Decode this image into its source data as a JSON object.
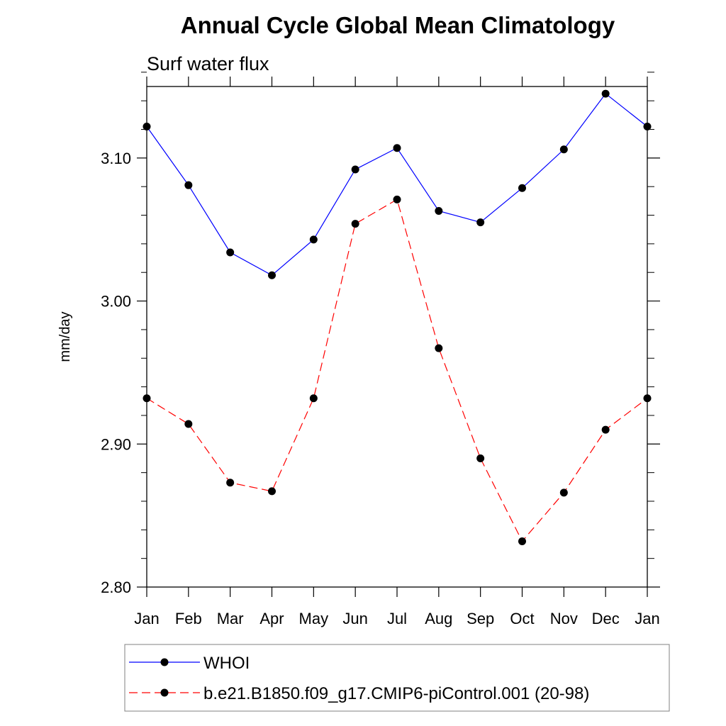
{
  "chart_data": {
    "type": "line",
    "title": "Annual Cycle Global Mean Climatology",
    "subtitle": "Surf water flux",
    "xlabel": "",
    "ylabel": "mm/day",
    "categories": [
      "Jan",
      "Feb",
      "Mar",
      "Apr",
      "May",
      "Jun",
      "Jul",
      "Aug",
      "Sep",
      "Oct",
      "Nov",
      "Dec",
      "Jan"
    ],
    "ylim": [
      2.8,
      3.15
    ],
    "yticks": [
      2.8,
      2.9,
      3.0,
      3.1
    ],
    "ytick_labels": [
      "2.80",
      "2.90",
      "3.00",
      "3.10"
    ],
    "series": [
      {
        "name": "WHOI",
        "color": "#0000ff",
        "line_style": "solid",
        "marker": "filled-circle",
        "values": [
          3.122,
          3.081,
          3.034,
          3.018,
          3.043,
          3.092,
          3.107,
          3.063,
          3.055,
          3.079,
          3.106,
          3.145,
          3.122
        ]
      },
      {
        "name": "b.e21.B1850.f09_g17.CMIP6-piControl.001 (20-98)",
        "color": "#ff0000",
        "line_style": "dashed",
        "marker": "filled-circle",
        "values": [
          2.932,
          2.914,
          2.873,
          2.867,
          2.932,
          3.054,
          3.071,
          2.967,
          2.89,
          2.832,
          2.866,
          2.91,
          2.932
        ]
      }
    ],
    "grid": false,
    "legend_position": "bottom"
  }
}
